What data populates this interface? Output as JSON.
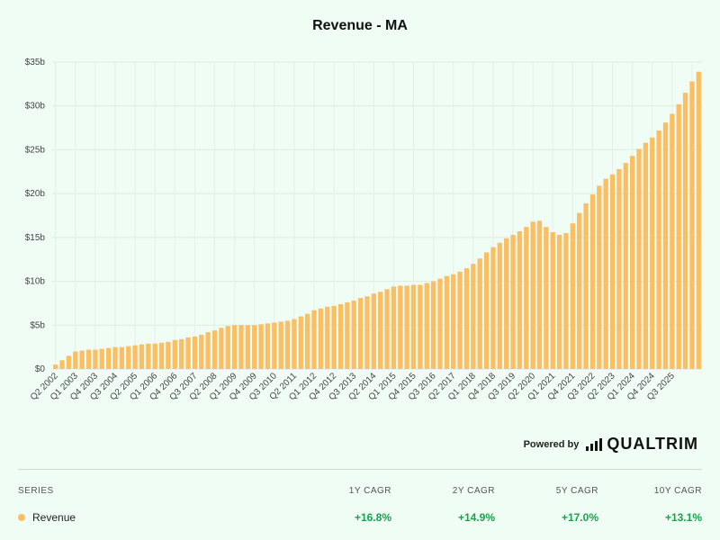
{
  "chart_data": {
    "type": "bar",
    "title": "Revenue - MA",
    "series_name": "Revenue",
    "bar_color": "#fbbf63",
    "grid": true,
    "ylim": [
      0,
      35
    ],
    "y_ticks": [
      "$0",
      "$5b",
      "$10b",
      "$15b",
      "$20b",
      "$25b",
      "$30b",
      "$35b"
    ],
    "x_labels_visible": [
      "Q2 2002",
      "Q1 2003",
      "Q4 2003",
      "Q3 2004",
      "Q2 2005",
      "Q1 2006",
      "Q4 2006",
      "Q3 2007",
      "Q2 2008",
      "Q1 2009",
      "Q4 2009",
      "Q3 2010",
      "Q2 2011",
      "Q1 2012",
      "Q4 2012",
      "Q3 2013",
      "Q2 2014",
      "Q1 2015",
      "Q4 2015",
      "Q3 2016",
      "Q2 2017",
      "Q1 2018",
      "Q4 2018",
      "Q3 2019",
      "Q2 2020",
      "Q1 2021",
      "Q4 2021",
      "Q3 2022",
      "Q2 2023",
      "Q1 2024",
      "Q4 2024",
      "Q3 2025"
    ],
    "first_period": "Q2 2002",
    "values": [
      0.5,
      1.0,
      1.5,
      2.0,
      2.1,
      2.2,
      2.2,
      2.3,
      2.4,
      2.5,
      2.5,
      2.6,
      2.7,
      2.8,
      2.9,
      2.9,
      3.0,
      3.1,
      3.3,
      3.4,
      3.6,
      3.7,
      3.9,
      4.2,
      4.4,
      4.7,
      4.9,
      5.0,
      5.0,
      5.0,
      5.0,
      5.1,
      5.2,
      5.3,
      5.4,
      5.5,
      5.7,
      6.0,
      6.3,
      6.7,
      6.9,
      7.1,
      7.2,
      7.4,
      7.6,
      7.8,
      8.1,
      8.3,
      8.6,
      8.8,
      9.1,
      9.4,
      9.5,
      9.5,
      9.6,
      9.6,
      9.8,
      10.0,
      10.3,
      10.6,
      10.8,
      11.1,
      11.5,
      12.0,
      12.6,
      13.3,
      13.9,
      14.4,
      14.9,
      15.3,
      15.7,
      16.2,
      16.8,
      16.9,
      16.2,
      15.6,
      15.3,
      15.5,
      16.6,
      17.8,
      18.9,
      19.9,
      20.9,
      21.7,
      22.2,
      22.8,
      23.5,
      24.3,
      25.1,
      25.8,
      26.4,
      27.2,
      28.1,
      29.1,
      30.2,
      31.5,
      32.8,
      33.9
    ]
  },
  "powered_by": {
    "label": "Powered by",
    "brand": "QUALTRIM"
  },
  "stats": {
    "headers": {
      "series": "SERIES",
      "c1": "1Y CAGR",
      "c2": "2Y CAGR",
      "c3": "5Y CAGR",
      "c4": "10Y CAGR"
    },
    "row": {
      "series": "Revenue",
      "c1": "+16.8%",
      "c2": "+14.9%",
      "c3": "+17.0%",
      "c4": "+13.1%"
    }
  }
}
